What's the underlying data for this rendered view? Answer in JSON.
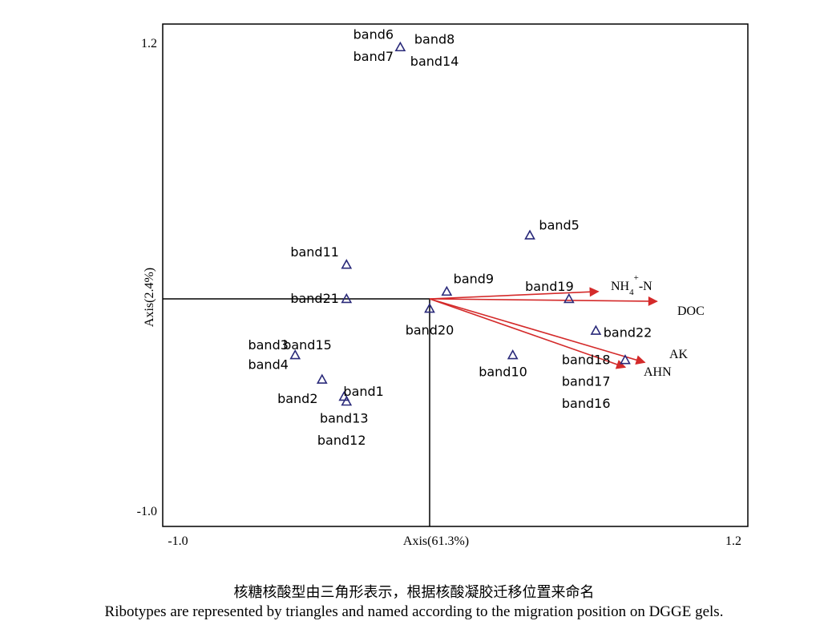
{
  "chart_data": {
    "type": "scatter",
    "subtype": "ordination biplot",
    "xlabel": "Axis(61.3%)",
    "ylabel": "Axis(2.4%)",
    "xlim": [
      -1.0,
      1.2
    ],
    "ylim": [
      -1.0,
      1.2
    ],
    "x_ticks": [
      "-1.0",
      "1.2"
    ],
    "y_ticks": [
      "1.2",
      "-1.0"
    ],
    "grid": false,
    "marker": "triangle",
    "marker_color": "#2a2a7a",
    "arrow_color": "#d42a2a",
    "points": [
      {
        "label": "band6 band7 band8 band14",
        "x": -0.12,
        "y": 1.03
      },
      {
        "label": "band5",
        "x": 0.41,
        "y": 0.26
      },
      {
        "label": "band11",
        "x": -0.34,
        "y": 0.14
      },
      {
        "label": "band9",
        "x": 0.07,
        "y": 0.03
      },
      {
        "label": "band21",
        "x": -0.34,
        "y": 0.0
      },
      {
        "label": "band19",
        "x": 0.57,
        "y": 0.0
      },
      {
        "label": "band20",
        "x": 0.0,
        "y": -0.04
      },
      {
        "label": "band22",
        "x": 0.68,
        "y": -0.13
      },
      {
        "label": "band10",
        "x": 0.34,
        "y": -0.23
      },
      {
        "label": "band16 band17 band18",
        "x": 0.8,
        "y": -0.25
      },
      {
        "label": "band3 band4 band15",
        "x": -0.55,
        "y": -0.23
      },
      {
        "label": "band2",
        "x": -0.44,
        "y": -0.33
      },
      {
        "label": "band1",
        "x": -0.35,
        "y": -0.4
      },
      {
        "label": "band12 band13",
        "x": -0.34,
        "y": -0.42
      }
    ],
    "arrows": [
      {
        "name": "NH4+-N",
        "x": 0.69,
        "y": 0.03
      },
      {
        "name": "DOC",
        "x": 0.93,
        "y": -0.01
      },
      {
        "name": "AK",
        "x": 0.88,
        "y": -0.26
      },
      {
        "name": "AHN",
        "x": 0.8,
        "y": -0.28
      }
    ],
    "text_labels": [
      {
        "text": "band6",
        "x": -0.23,
        "y": 1.08
      },
      {
        "text": "band7",
        "x": -0.23,
        "y": 0.99
      },
      {
        "text": "band8",
        "x": 0.02,
        "y": 1.06
      },
      {
        "text": "band14",
        "x": 0.02,
        "y": 0.97
      },
      {
        "text": "band5",
        "x": 0.53,
        "y": 0.3
      },
      {
        "text": "band11",
        "x": -0.47,
        "y": 0.19
      },
      {
        "text": "band9",
        "x": 0.18,
        "y": 0.08
      },
      {
        "text": "band21",
        "x": -0.47,
        "y": 0.0
      },
      {
        "text": "band19",
        "x": 0.49,
        "y": 0.05
      },
      {
        "text": "band20",
        "x": 0.0,
        "y": -0.13
      },
      {
        "text": "band22",
        "x": 0.81,
        "y": -0.14
      },
      {
        "text": "band10",
        "x": 0.3,
        "y": -0.3
      },
      {
        "text": "band18",
        "x": 0.64,
        "y": -0.25
      },
      {
        "text": "band17",
        "x": 0.64,
        "y": -0.34
      },
      {
        "text": "band16",
        "x": 0.64,
        "y": -0.43
      },
      {
        "text": "band3",
        "x": -0.66,
        "y": -0.19
      },
      {
        "text": "band4",
        "x": -0.66,
        "y": -0.27
      },
      {
        "text": "band15",
        "x": -0.5,
        "y": -0.19
      },
      {
        "text": "band2",
        "x": -0.54,
        "y": -0.41
      },
      {
        "text": "band1",
        "x": -0.27,
        "y": -0.38
      },
      {
        "text": "band13",
        "x": -0.35,
        "y": -0.49
      },
      {
        "text": "band12",
        "x": -0.36,
        "y": -0.58
      }
    ]
  },
  "caption": {
    "zh": "核糖核酸型由三角形表示，根据核酸凝胶迁移位置来命名",
    "en": "Ribotypes are represented by triangles and named according to the migration position on DGGE gels."
  }
}
